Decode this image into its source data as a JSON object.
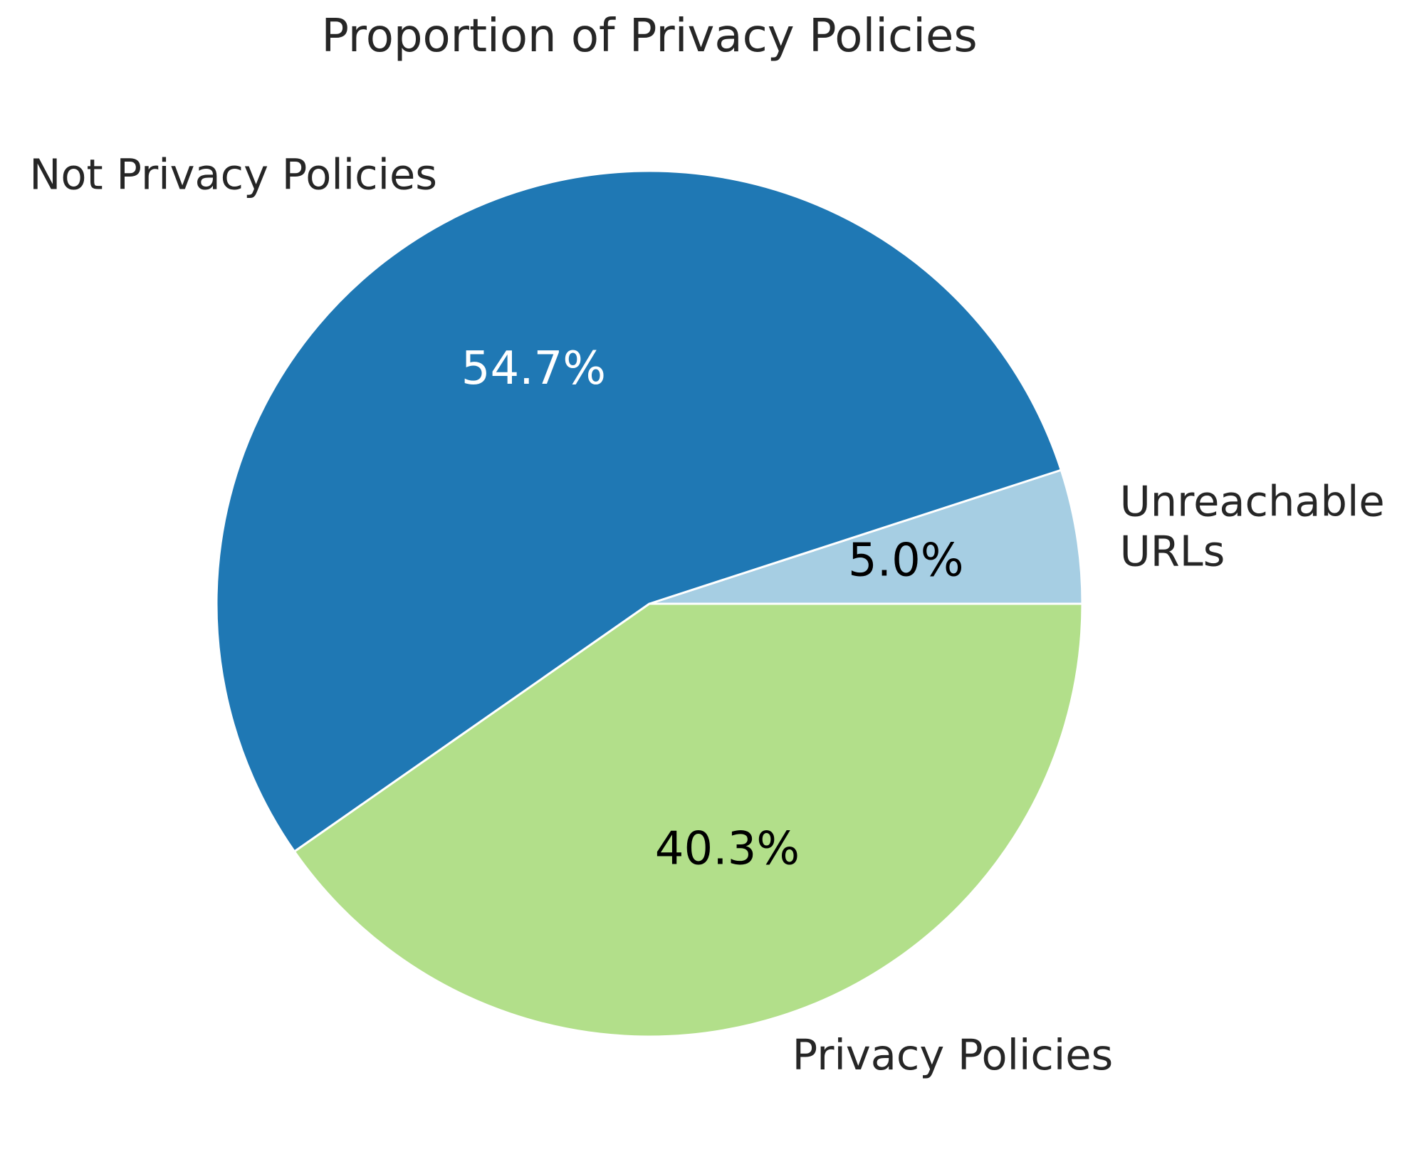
{
  "chart_data": {
    "type": "pie",
    "title": "Proportion of Privacy Policies",
    "slices": [
      {
        "label": "Unreachable\nURLs",
        "value": 5.0,
        "pct_label": "5.0%",
        "color": "#a6cee3",
        "pct_color": "#000000"
      },
      {
        "label": "Not Privacy Policies",
        "value": 54.7,
        "pct_label": "54.7%",
        "color": "#1f78b4",
        "pct_color": "#ffffff"
      },
      {
        "label": "Privacy Policies",
        "value": 40.3,
        "pct_label": "40.3%",
        "color": "#b2df8a",
        "pct_color": "#000000"
      }
    ],
    "start_angle_deg": 0,
    "direction": "counterclockwise",
    "legend": "none"
  }
}
